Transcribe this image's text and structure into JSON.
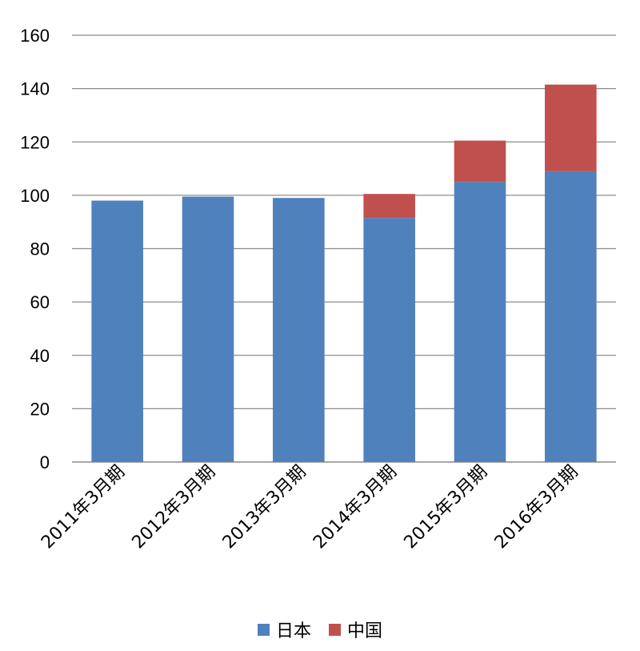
{
  "chart_data": {
    "type": "bar",
    "stacked": true,
    "title": "",
    "xlabel": "",
    "ylabel": "",
    "categories": [
      "2011年3月期",
      "2012年3月期",
      "2013年3月期",
      "2014年3月期",
      "2015年3月期",
      "2016年3月期"
    ],
    "series": [
      {
        "name": "日本",
        "color": "#4f81bd",
        "values": [
          98,
          99.5,
          99,
          91.5,
          105,
          109
        ]
      },
      {
        "name": "中国",
        "color": "#c0504d",
        "values": [
          0,
          0,
          0,
          9,
          15.5,
          32.5
        ]
      }
    ],
    "ylim": [
      0,
      160
    ],
    "yticks": [
      0,
      20,
      40,
      60,
      80,
      100,
      120,
      140,
      160
    ],
    "grid": true,
    "legend_position": "bottom"
  }
}
